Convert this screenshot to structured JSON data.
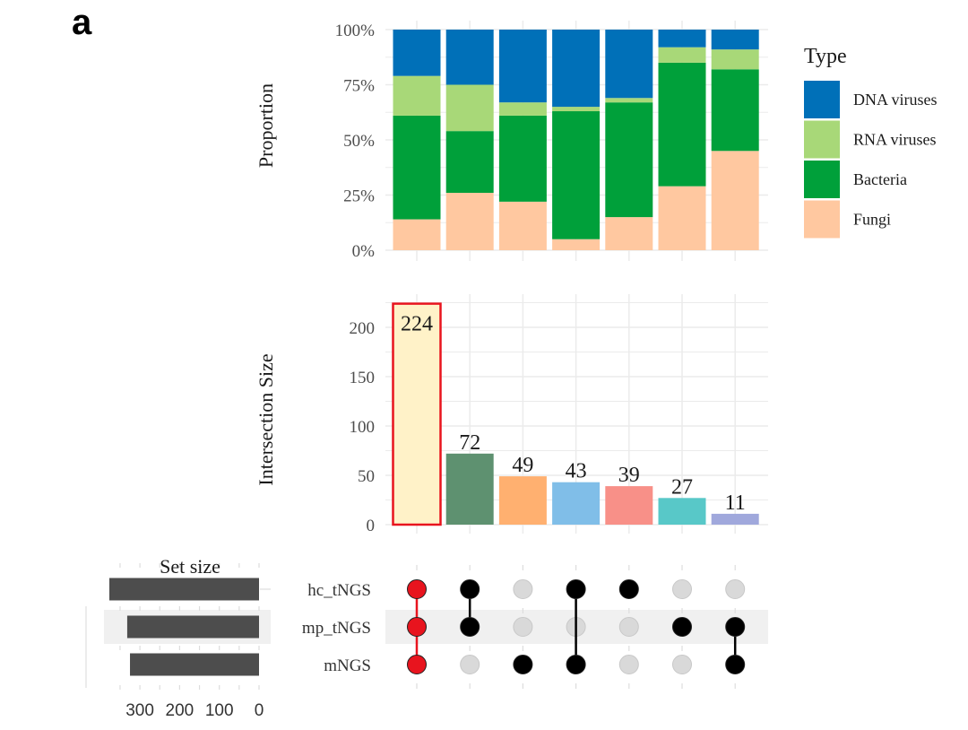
{
  "panel_letter": "a",
  "chart_data": [
    {
      "type": "bar",
      "stacked": true,
      "normalized": true,
      "title": "",
      "xlabel": "",
      "ylabel": "Proportion",
      "ylim": [
        0,
        1
      ],
      "yticks": [
        "0%",
        "25%",
        "50%",
        "75%",
        "100%"
      ],
      "grid": true,
      "legend": {
        "title": "Type",
        "placement": "right",
        "entries": [
          {
            "name": "DNA viruses",
            "color": "#0070B8"
          },
          {
            "name": "RNA viruses",
            "color": "#A8D878"
          },
          {
            "name": "Bacteria",
            "color": "#00A03A"
          },
          {
            "name": "Fungi",
            "color": "#FFC8A0"
          }
        ]
      },
      "categories": [
        "1",
        "2",
        "3",
        "4",
        "5",
        "6",
        "7"
      ],
      "series": [
        {
          "name": "Fungi",
          "color": "#FFC8A0",
          "values": [
            0.14,
            0.26,
            0.22,
            0.05,
            0.15,
            0.29,
            0.45
          ]
        },
        {
          "name": "Bacteria",
          "color": "#00A03A",
          "values": [
            0.47,
            0.28,
            0.39,
            0.58,
            0.52,
            0.56,
            0.37
          ]
        },
        {
          "name": "RNA viruses",
          "color": "#A8D878",
          "values": [
            0.18,
            0.21,
            0.06,
            0.02,
            0.02,
            0.07,
            0.09
          ]
        },
        {
          "name": "DNA viruses",
          "color": "#0070B8",
          "values": [
            0.21,
            0.25,
            0.33,
            0.35,
            0.31,
            0.08,
            0.09
          ]
        }
      ]
    },
    {
      "type": "bar",
      "title": "",
      "xlabel": "",
      "ylabel": "Intersection Size",
      "ylim": [
        0,
        230
      ],
      "yticks": [
        0,
        50,
        100,
        150,
        200
      ],
      "grid": true,
      "categories": [
        "1",
        "2",
        "3",
        "4",
        "5",
        "6",
        "7"
      ],
      "values": [
        224,
        72,
        49,
        43,
        39,
        27,
        11
      ],
      "data_labels": [
        "224",
        "72",
        "49",
        "43",
        "39",
        "27",
        "11"
      ],
      "colors": [
        "#FFF2C8",
        "#5E9170",
        "#FFB070",
        "#80BEE8",
        "#F89088",
        "#58C8C8",
        "#A0A8DC"
      ],
      "highlight": {
        "index": 0,
        "outline_color": "#E8141E"
      }
    },
    {
      "type": "table",
      "title": "UpSet matrix",
      "sets": [
        "hc_tNGS",
        "mp_tNGS",
        "mNGS"
      ],
      "membership": [
        [
          "hc_tNGS",
          "mp_tNGS",
          "mNGS"
        ],
        [
          "hc_tNGS",
          "mp_tNGS"
        ],
        [
          "mNGS"
        ],
        [
          "hc_tNGS",
          "mNGS"
        ],
        [
          "hc_tNGS"
        ],
        [
          "mp_tNGS"
        ],
        [
          "mp_tNGS",
          "mNGS"
        ]
      ],
      "highlight_color": "#E8141E",
      "active_color": "#000000",
      "inactive_color": "#D9D9D9"
    },
    {
      "type": "bar",
      "orientation": "horizontal",
      "title": "Set size",
      "xlabel": "",
      "ylabel": "",
      "xlim": [
        380,
        0
      ],
      "xticks": [
        "300",
        "200",
        "100",
        "0"
      ],
      "categories": [
        "hc_tNGS",
        "mp_tNGS",
        "mNGS"
      ],
      "values": [
        377,
        332,
        325
      ],
      "color": "#4D4D4D"
    }
  ]
}
